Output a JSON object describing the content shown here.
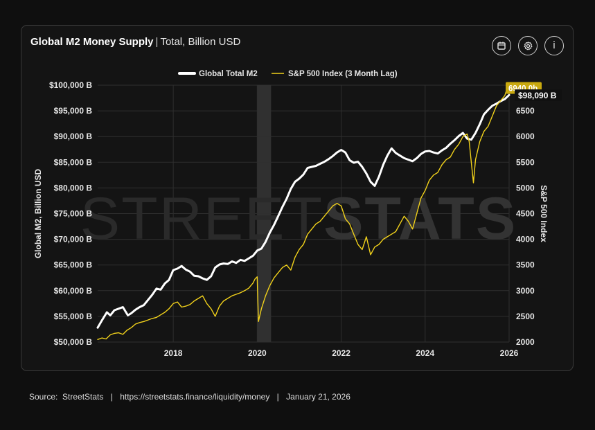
{
  "header": {
    "title_main": "Global M2 Money Supply",
    "title_sep": "|",
    "title_sub": "Total, Billion USD"
  },
  "toolbar": {
    "buttons": [
      {
        "name": "calendar-icon"
      },
      {
        "name": "gear-icon"
      },
      {
        "name": "info-icon",
        "label": "i"
      }
    ]
  },
  "watermark": {
    "text_light": "STREET",
    "text_bold": "STATS"
  },
  "footer": {
    "source_label": "Source:",
    "source_name": "StreetStats",
    "url": "https://streetstats.finance/liquidity/money",
    "date": "January 21, 2026",
    "sep": "|"
  },
  "colors": {
    "background": "#0f0f0f",
    "card": "#141414",
    "m2_line": "#ffffff",
    "sp500_line": "#f2d21b",
    "sp500_badge": "#c9a90f",
    "grid": "#2f2f2f",
    "shade": "#3a3a3a"
  },
  "chart_data": {
    "type": "line",
    "title": "",
    "xlabel": "",
    "ylabel": "Global M2, Billion USD",
    "y2label": "S&P 500 Index",
    "xlim": [
      2016.2,
      2026.0
    ],
    "ylim": [
      50000,
      100000
    ],
    "y2lim": [
      2000,
      7000
    ],
    "x_ticks": [
      2018,
      2020,
      2022,
      2024,
      2026
    ],
    "x_tick_labels": [
      "2018",
      "2020",
      "2022",
      "2024",
      "2026"
    ],
    "y_ticks": [
      50000,
      55000,
      60000,
      65000,
      70000,
      75000,
      80000,
      85000,
      90000,
      95000,
      100000
    ],
    "y_tick_labels": [
      "$50,000 B",
      "$55,000 B",
      "$60,000 B",
      "$65,000 B",
      "$70,000 B",
      "$75,000 B",
      "$80,000 B",
      "$85,000 B",
      "$90,000 B",
      "$95,000 B",
      "$100,000 B"
    ],
    "y2_ticks": [
      2000,
      2500,
      3000,
      3500,
      4000,
      4500,
      5000,
      5500,
      6000,
      6500
    ],
    "y2_tick_labels": [
      "2000",
      "2500",
      "3000",
      "3500",
      "4000",
      "4500",
      "5000",
      "5500",
      "6000",
      "6500"
    ],
    "grid": true,
    "legend_position": "top-center",
    "shaded_region": [
      2020.0,
      2020.33
    ],
    "series": [
      {
        "name": "Global Total M2",
        "axis": "left",
        "color": "#ffffff",
        "x": [
          2016.2,
          2016.3,
          2016.42,
          2016.5,
          2016.6,
          2016.7,
          2016.8,
          2016.92,
          2017.0,
          2017.1,
          2017.2,
          2017.3,
          2017.4,
          2017.5,
          2017.6,
          2017.7,
          2017.8,
          2017.9,
          2018.0,
          2018.1,
          2018.2,
          2018.3,
          2018.4,
          2018.5,
          2018.6,
          2018.7,
          2018.8,
          2018.9,
          2019.0,
          2019.1,
          2019.2,
          2019.3,
          2019.4,
          2019.5,
          2019.6,
          2019.7,
          2019.8,
          2019.9,
          2020.0,
          2020.1,
          2020.2,
          2020.3,
          2020.4,
          2020.5,
          2020.6,
          2020.7,
          2020.8,
          2020.9,
          2021.0,
          2021.1,
          2021.2,
          2021.3,
          2021.4,
          2021.5,
          2021.6,
          2021.7,
          2021.8,
          2021.9,
          2022.0,
          2022.1,
          2022.2,
          2022.3,
          2022.4,
          2022.5,
          2022.6,
          2022.7,
          2022.8,
          2022.9,
          2023.0,
          2023.1,
          2023.2,
          2023.3,
          2023.4,
          2023.5,
          2023.6,
          2023.7,
          2023.8,
          2023.9,
          2024.0,
          2024.1,
          2024.2,
          2024.3,
          2024.4,
          2024.5,
          2024.6,
          2024.7,
          2024.8,
          2024.9,
          2025.0,
          2025.1,
          2025.2,
          2025.3,
          2025.4,
          2025.5,
          2025.6,
          2025.7,
          2025.8,
          2025.9,
          2026.0
        ],
        "values": [
          52800,
          54200,
          55800,
          55200,
          56200,
          56500,
          56800,
          55200,
          55600,
          56300,
          56800,
          57200,
          58200,
          59200,
          60400,
          60200,
          61400,
          62100,
          64000,
          64300,
          64800,
          64100,
          63700,
          62900,
          62800,
          62400,
          62100,
          62800,
          64500,
          65100,
          65300,
          65200,
          65700,
          65400,
          66000,
          65800,
          66300,
          66800,
          67800,
          68200,
          69500,
          71300,
          72800,
          74500,
          76300,
          77900,
          79800,
          81200,
          81800,
          82600,
          83900,
          84100,
          84300,
          84700,
          85100,
          85600,
          86200,
          86900,
          87400,
          86900,
          85400,
          84900,
          85100,
          84100,
          82800,
          81200,
          80400,
          82200,
          84500,
          86300,
          87700,
          86800,
          86300,
          85800,
          85500,
          85200,
          85800,
          86600,
          87100,
          87200,
          86900,
          86700,
          87300,
          87800,
          88600,
          89300,
          90100,
          90700,
          89600,
          89400,
          90700,
          92400,
          94300,
          95200,
          96000,
          96400,
          96900,
          97300,
          98090
        ]
      },
      {
        "name": "S&P 500 Index (3 Month Lag)",
        "axis": "right",
        "color": "#f2d21b",
        "x": [
          2016.2,
          2016.3,
          2016.4,
          2016.5,
          2016.6,
          2016.7,
          2016.8,
          2016.9,
          2017.0,
          2017.1,
          2017.2,
          2017.3,
          2017.4,
          2017.5,
          2017.6,
          2017.7,
          2017.8,
          2017.9,
          2018.0,
          2018.1,
          2018.2,
          2018.3,
          2018.4,
          2018.5,
          2018.6,
          2018.7,
          2018.8,
          2018.9,
          2019.0,
          2019.1,
          2019.2,
          2019.3,
          2019.4,
          2019.5,
          2019.6,
          2019.7,
          2019.8,
          2019.9,
          2019.95,
          2020.0,
          2020.03,
          2020.1,
          2020.2,
          2020.3,
          2020.4,
          2020.5,
          2020.6,
          2020.7,
          2020.8,
          2020.9,
          2021.0,
          2021.1,
          2021.2,
          2021.3,
          2021.4,
          2021.5,
          2021.6,
          2021.7,
          2021.8,
          2021.9,
          2022.0,
          2022.1,
          2022.2,
          2022.3,
          2022.4,
          2022.5,
          2022.6,
          2022.7,
          2022.8,
          2022.9,
          2023.0,
          2023.1,
          2023.2,
          2023.3,
          2023.4,
          2023.5,
          2023.6,
          2023.7,
          2023.8,
          2023.9,
          2024.0,
          2024.1,
          2024.2,
          2024.3,
          2024.4,
          2024.5,
          2024.6,
          2024.7,
          2024.8,
          2024.9,
          2025.0,
          2025.05,
          2025.1,
          2025.15,
          2025.2,
          2025.3,
          2025.4,
          2025.5,
          2025.6,
          2025.7,
          2025.8,
          2025.9,
          2025.95
        ],
        "values": [
          2050,
          2080,
          2060,
          2140,
          2170,
          2180,
          2150,
          2230,
          2280,
          2350,
          2380,
          2400,
          2430,
          2460,
          2480,
          2530,
          2580,
          2650,
          2750,
          2780,
          2680,
          2700,
          2730,
          2800,
          2850,
          2900,
          2750,
          2650,
          2500,
          2700,
          2800,
          2850,
          2900,
          2930,
          2960,
          3000,
          3050,
          3150,
          3230,
          3270,
          2400,
          2650,
          2900,
          3100,
          3250,
          3350,
          3450,
          3500,
          3400,
          3650,
          3800,
          3900,
          4100,
          4200,
          4300,
          4350,
          4450,
          4550,
          4650,
          4700,
          4650,
          4400,
          4300,
          4100,
          3900,
          3800,
          4050,
          3700,
          3850,
          3900,
          4000,
          4050,
          4100,
          4150,
          4300,
          4450,
          4350,
          4200,
          4500,
          4800,
          4950,
          5150,
          5250,
          5300,
          5450,
          5550,
          5600,
          5750,
          5850,
          6000,
          6050,
          5900,
          5500,
          5100,
          5550,
          5900,
          6100,
          6200,
          6400,
          6600,
          6700,
          6800,
          6940
        ]
      }
    ],
    "end_labels": [
      {
        "series": "S&P 500 Index (3 Month Lag)",
        "text": "6940.0b"
      },
      {
        "series": "Global Total M2",
        "text": "$98,090 B"
      }
    ]
  }
}
